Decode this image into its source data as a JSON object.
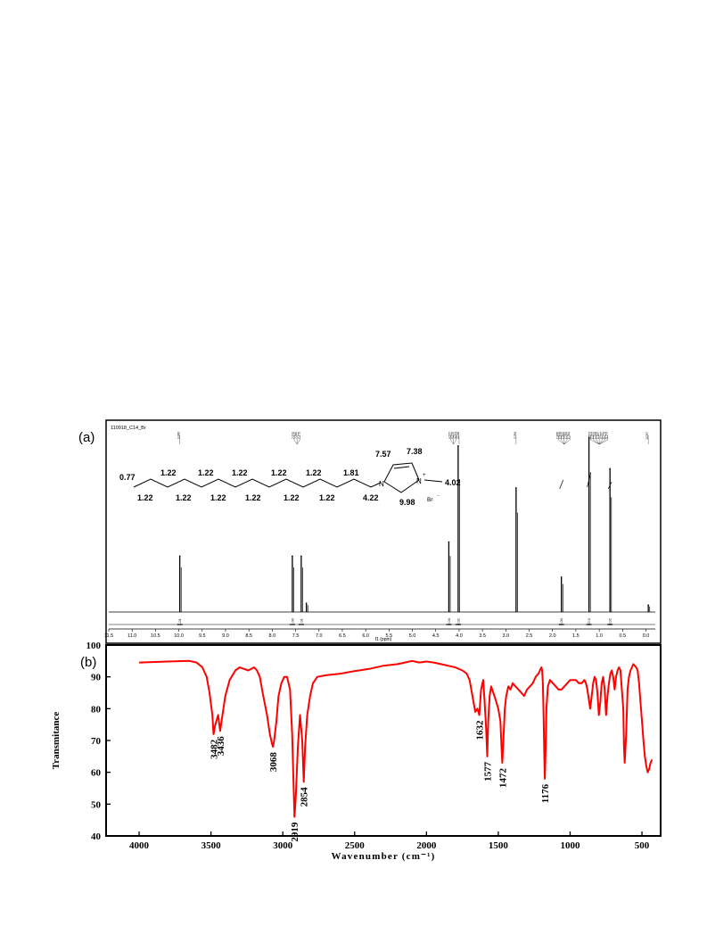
{
  "chart_data": [
    {
      "type": "line",
      "panel_label": "(a)",
      "header_text": "110918_C14_Br",
      "xlabel": "f1 (ppm)",
      "xlim": [
        11.5,
        -0.2
      ],
      "x_ticks": [
        "11.5",
        "11.0",
        "10.5",
        "10.0",
        "9.5",
        "9.0",
        "8.5",
        "8.0",
        "7.5",
        "7.0",
        "6.5",
        "6.0",
        "5.5",
        "5.0",
        "4.5",
        "4.0",
        "3.5",
        "3.0",
        "2.5",
        "2.0",
        "1.5",
        "1.0",
        "0.5",
        "0.0"
      ],
      "x_tick_values": [
        11.5,
        11.0,
        10.5,
        10.0,
        9.5,
        9.0,
        8.5,
        8.0,
        7.5,
        7.0,
        6.5,
        6.0,
        5.5,
        5.0,
        4.5,
        4.0,
        3.5,
        3.0,
        2.5,
        2.0,
        1.5,
        1.0,
        0.5,
        0.0
      ],
      "peaks": [
        {
          "ppm": 9.98,
          "height": 0.32
        },
        {
          "ppm": 7.57,
          "height": 0.32
        },
        {
          "ppm": 7.38,
          "height": 0.32
        },
        {
          "ppm": 7.27,
          "height": 0.05
        },
        {
          "ppm": 4.22,
          "height": 0.4
        },
        {
          "ppm": 4.02,
          "height": 0.95
        },
        {
          "ppm": 2.78,
          "height": 0.71
        },
        {
          "ppm": 1.81,
          "height": 0.2
        },
        {
          "ppm": 1.22,
          "height": 1.0
        },
        {
          "ppm": 0.77,
          "height": 0.82
        },
        {
          "ppm": -0.05,
          "height": 0.04
        }
      ],
      "peak_list_groups": [
        {
          "ppm": 9.98,
          "labels": [
            "9.980"
          ]
        },
        {
          "ppm": 7.47,
          "labels": [
            "7.570",
            "7.380",
            "7.270"
          ]
        },
        {
          "ppm": 4.12,
          "labels": [
            "4.237",
            "4.220",
            "4.021"
          ]
        },
        {
          "ppm": 4.0,
          "labels": [
            "4.016"
          ]
        },
        {
          "ppm": 2.78,
          "labels": [
            "2.784"
          ]
        },
        {
          "ppm": 1.75,
          "labels": [
            "1.836",
            "1.818",
            "1.800",
            "1.782",
            "1.764"
          ]
        },
        {
          "ppm": 1.0,
          "labels": [
            "1.231",
            "1.222",
            "1.208",
            "1.187",
            "0.787",
            "0.770",
            "0.753"
          ]
        },
        {
          "ppm": -0.05,
          "labels": [
            "-0.057"
          ]
        }
      ],
      "integrals": [
        {
          "ppm": 9.98,
          "label": "1.01"
        },
        {
          "ppm": 7.57,
          "label": "1.00"
        },
        {
          "ppm": 7.38,
          "label": "1.01"
        },
        {
          "ppm": 4.22,
          "label": "2.04"
        },
        {
          "ppm": 4.02,
          "label": "3.02"
        },
        {
          "ppm": 1.81,
          "label": "2.00"
        },
        {
          "ppm": 1.22,
          "label": "22.0"
        },
        {
          "ppm": 0.77,
          "label": "3.02"
        }
      ],
      "structure_labels": {
        "top": [
          "1.22",
          "1.22",
          "1.22",
          "1.22",
          "1.22",
          "1.81"
        ],
        "bottom": [
          "1.22",
          "1.22",
          "1.22",
          "1.22",
          "1.22",
          "1.22",
          "4.22"
        ],
        "terminal": "0.77",
        "ring_left": "7.57",
        "ring_right": "7.38",
        "ring_bottom": "9.98",
        "methyl": "4.02",
        "n_left": "N",
        "n_right": "N",
        "plus": "+",
        "counterion": "Br"
      }
    },
    {
      "type": "line",
      "panel_label": "(b)",
      "xlabel": "Wavenumber (cm⁻¹)",
      "ylabel": "Transmitance",
      "xlim": [
        4230,
        370
      ],
      "ylim": [
        40,
        100
      ],
      "x_ticks": [
        4000,
        3500,
        3000,
        2500,
        2000,
        1500,
        1000,
        500
      ],
      "y_ticks": [
        40,
        50,
        60,
        70,
        80,
        90,
        100
      ],
      "series_color": "#ff0000",
      "series": [
        {
          "x": [
            4000,
            3800,
            3650,
            3600,
            3560,
            3530,
            3510,
            3490,
            3482,
            3470,
            3450,
            3436,
            3420,
            3400,
            3370,
            3330,
            3300,
            3270,
            3240,
            3200,
            3180,
            3160,
            3140,
            3110,
            3090,
            3075,
            3068,
            3060,
            3045,
            3030,
            3010,
            2990,
            2970,
            2950,
            2935,
            2925,
            2919,
            2910,
            2895,
            2880,
            2865,
            2854,
            2845,
            2830,
            2810,
            2790,
            2760,
            2700,
            2600,
            2500,
            2400,
            2300,
            2200,
            2150,
            2100,
            2050,
            2000,
            1950,
            1900,
            1850,
            1800,
            1750,
            1720,
            1700,
            1680,
            1660,
            1645,
            1632,
            1620,
            1605,
            1595,
            1585,
            1577,
            1570,
            1560,
            1550,
            1535,
            1520,
            1500,
            1485,
            1478,
            1472,
            1465,
            1455,
            1445,
            1430,
            1415,
            1400,
            1380,
            1360,
            1340,
            1320,
            1300,
            1280,
            1260,
            1240,
            1220,
            1210,
            1200,
            1195,
            1190,
            1185,
            1180,
            1176,
            1170,
            1165,
            1155,
            1140,
            1120,
            1100,
            1080,
            1060,
            1040,
            1020,
            1000,
            980,
            960,
            940,
            920,
            900,
            890,
            880,
            870,
            860,
            850,
            840,
            830,
            820,
            810,
            800,
            790,
            780,
            770,
            760,
            750,
            740,
            730,
            720,
            710,
            700,
            690,
            680,
            670,
            660,
            650,
            640,
            630,
            625,
            620,
            610,
            600,
            590,
            580,
            570,
            560,
            550,
            540,
            530,
            520,
            510,
            500,
            490,
            480,
            470,
            460,
            450,
            440,
            430
          ],
          "y": [
            94.5,
            94.8,
            95,
            94.5,
            93,
            90,
            85,
            78,
            72,
            75,
            78,
            73,
            78,
            84,
            89,
            92,
            93,
            92.5,
            92,
            93,
            92,
            90,
            85,
            78,
            72,
            69,
            68,
            70,
            76,
            84,
            88,
            90,
            90,
            86,
            72,
            56,
            46,
            52,
            68,
            78,
            70,
            57,
            68,
            78,
            84,
            88,
            90,
            90.5,
            91,
            91.8,
            92.5,
            93.5,
            94,
            94.5,
            95,
            94.5,
            94.8,
            94.5,
            94,
            93.5,
            93,
            92,
            91,
            89,
            84,
            79,
            80,
            78,
            86,
            89,
            82,
            74,
            65,
            76,
            84,
            87,
            85,
            83,
            80,
            76,
            68,
            63,
            70,
            80,
            84,
            87,
            86,
            88,
            87,
            86,
            85,
            84,
            86,
            87,
            88,
            90,
            91,
            92,
            93,
            92,
            88,
            78,
            65,
            58,
            68,
            80,
            87,
            89,
            88,
            87,
            86,
            86,
            87,
            88,
            89,
            89,
            89,
            88,
            88,
            89,
            88,
            86,
            83,
            80,
            84,
            88,
            90,
            89,
            85,
            78,
            82,
            88,
            90,
            86,
            78,
            84,
            88,
            91,
            92,
            90,
            86,
            90,
            92,
            93,
            92,
            86,
            80,
            68,
            63,
            72,
            86,
            90,
            92,
            93,
            94,
            93.5,
            93,
            92,
            88,
            82,
            76,
            70,
            65,
            62,
            60,
            61,
            63,
            64
          ]
        }
      ],
      "annotations": [
        "3482",
        "3436",
        "3068",
        "2919",
        "2854",
        "1632",
        "1577",
        "1472",
        "1176"
      ]
    }
  ]
}
